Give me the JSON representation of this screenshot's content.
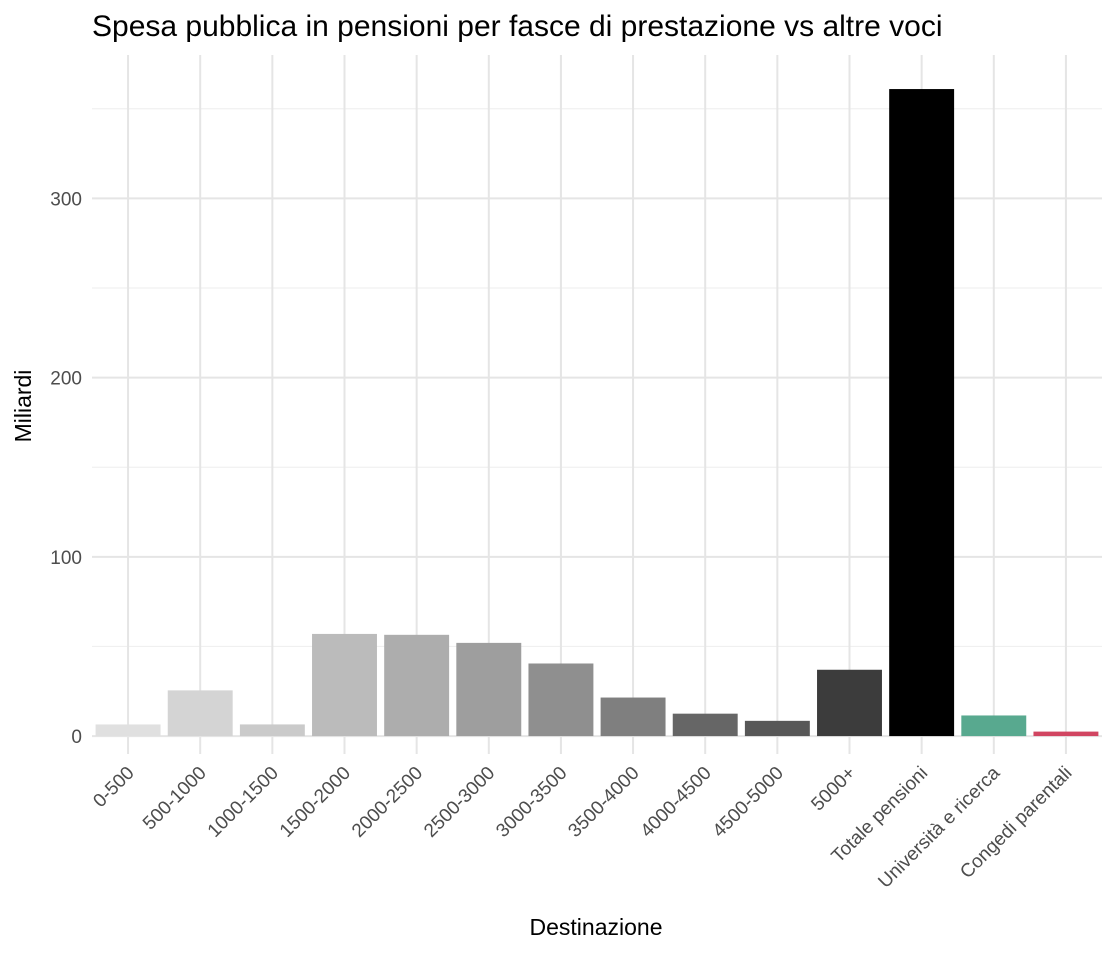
{
  "chart_data": {
    "type": "bar",
    "title": "Spesa pubblica in pensioni per fasce di prestazione vs altre voci",
    "xlabel": "Destinazione",
    "ylabel": "Miliardi",
    "categories": [
      "0-500",
      "500-1000",
      "1000-1500",
      "1500-2000",
      "2000-2500",
      "2500-3000",
      "3000-3500",
      "3500-4000",
      "4000-4500",
      "4500-5000",
      "5000+",
      "Totale pensioni",
      "Università e ricerca",
      "Congedi parentali"
    ],
    "values": [
      6.5,
      25.5,
      6.5,
      57,
      56.5,
      52,
      40.5,
      21.5,
      12.5,
      8.5,
      37,
      361,
      11.5,
      2.5
    ],
    "colors": [
      "#e0e0e0",
      "#d4d4d4",
      "#cacaca",
      "#bbbbbb",
      "#adadad",
      "#9e9e9e",
      "#8f8f8f",
      "#7f7f7f",
      "#666666",
      "#575757",
      "#3c3c3c",
      "#000000",
      "#58a98f",
      "#d14561"
    ],
    "ylim": [
      -10,
      380
    ],
    "yticks": [
      0,
      100,
      200,
      300
    ],
    "grid": true,
    "legend": "none"
  }
}
